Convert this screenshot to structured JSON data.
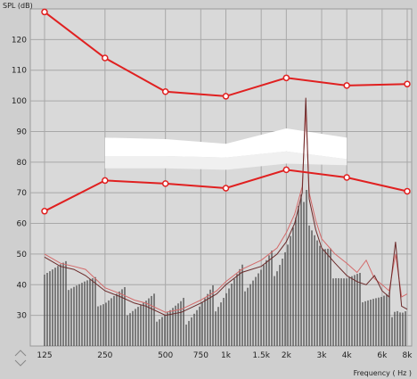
{
  "chart_data": {
    "type": "line",
    "ylabel": "SPL (dB)",
    "xlabel": "Frequency ( Hz )",
    "ylim": [
      20,
      130
    ],
    "x_ticks": [
      "125",
      "250",
      "500",
      "750",
      "1k",
      "1.5k",
      "2k",
      "3k",
      "4k",
      "6k",
      "8k"
    ],
    "y_ticks": [
      "30",
      "40",
      "50",
      "60",
      "70",
      "80",
      "90",
      "100",
      "110",
      "120"
    ],
    "grid": true,
    "series": [
      {
        "marker": "circle",
        "color": "#e02020",
        "x": [
          125,
          250,
          500,
          1000,
          2000,
          4000,
          8000
        ],
        "values": [
          129,
          114,
          103,
          101.5,
          107.5,
          105,
          105.5
        ]
      },
      {
        "marker": "circle",
        "color": "#e02020",
        "x": [
          125,
          250,
          500,
          1000,
          2000,
          4000,
          8000
        ],
        "values": [
          64,
          74,
          73,
          71.5,
          77.5,
          75,
          70.5
        ]
      }
    ],
    "band_upper": {
      "x": [
        250,
        500,
        1000,
        2000,
        4000
      ],
      "values": [
        88,
        87.5,
        86,
        91,
        88
      ]
    },
    "band_mid": {
      "x": [
        250,
        500,
        1000,
        2000,
        4000
      ],
      "values": [
        82,
        82,
        81.5,
        83.5,
        81
      ]
    },
    "band_lower": {
      "x": [
        250,
        500,
        1000,
        2000,
        4000
      ],
      "values": [
        78,
        78,
        77.5,
        79.5,
        79
      ]
    },
    "spectrum": {
      "x": [
        125,
        150,
        175,
        200,
        250,
        300,
        350,
        400,
        500,
        600,
        750,
        900,
        1000,
        1200,
        1500,
        1800,
        2000,
        2200,
        2400,
        2500,
        2600,
        2800,
        3000,
        3500,
        4000,
        4500,
        5000,
        5500,
        6000,
        6500,
        7000,
        7500,
        8000
      ],
      "bars": [
        46,
        44,
        42,
        40,
        36,
        35,
        34,
        33,
        32,
        31,
        33,
        36,
        38,
        42,
        44,
        48,
        52,
        58,
        66,
        78,
        62,
        56,
        50,
        46,
        42,
        40,
        38,
        36,
        34,
        33,
        35,
        32,
        31
      ],
      "line_dark": [
        49,
        46,
        45,
        43,
        38,
        36,
        34,
        33,
        30,
        31,
        34,
        37,
        40,
        44,
        46,
        50,
        54,
        60,
        70,
        101,
        68,
        58,
        52,
        47,
        43,
        41,
        40,
        43,
        38,
        36,
        54,
        33,
        32
      ],
      "line_light": [
        50,
        47,
        46,
        45,
        39,
        37,
        35,
        34,
        31,
        32,
        35,
        38,
        41,
        45,
        48,
        52,
        57,
        63,
        72,
        97,
        70,
        61,
        55,
        50,
        47,
        44,
        48,
        42,
        40,
        38,
        50,
        36,
        37
      ]
    }
  }
}
